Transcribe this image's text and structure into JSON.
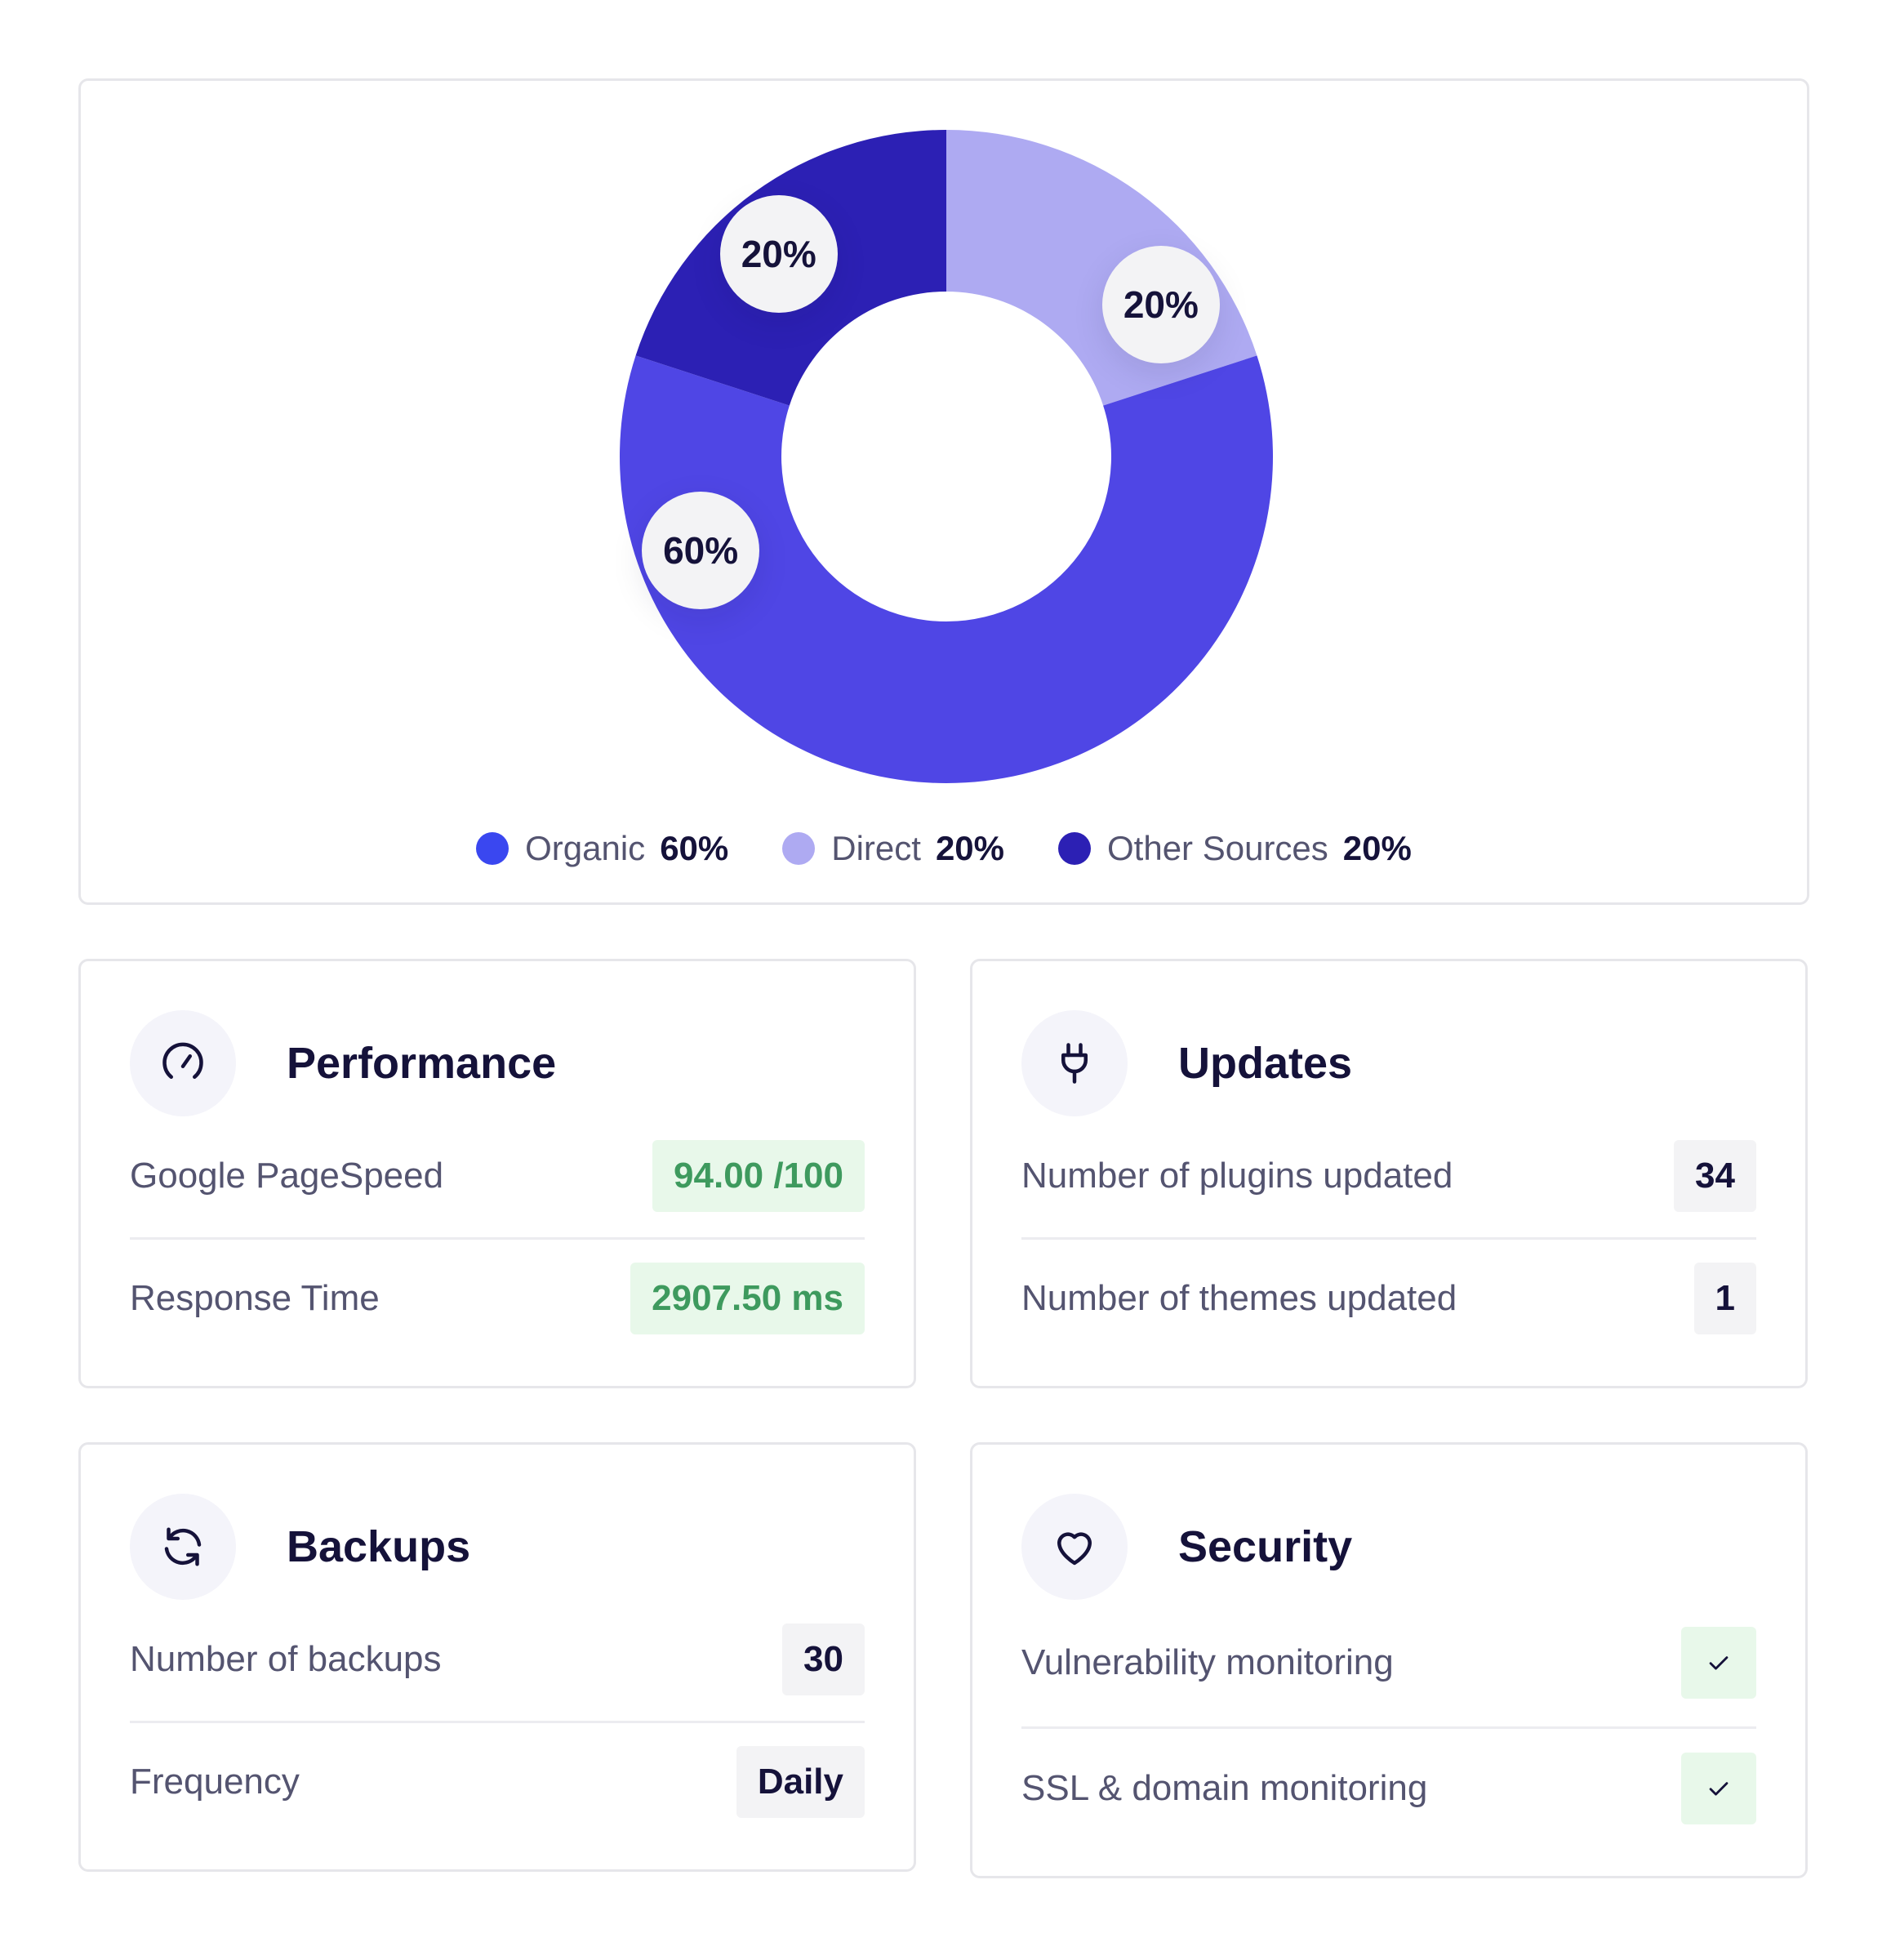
{
  "traffic": {
    "chart_data": {
      "type": "pie",
      "variant": "donut",
      "categories": [
        "Organic",
        "Direct",
        "Other Sources"
      ],
      "values": [
        60,
        20,
        20
      ],
      "unit": "%",
      "colors": [
        "#3a47f0",
        "#aeaaf2",
        "#2c20b4"
      ],
      "slice_colors": [
        "#4f46e5",
        "#aeaaf2",
        "#2c20b4"
      ],
      "data_labels": [
        "60%",
        "20%",
        "20%"
      ],
      "legend_position": "bottom"
    },
    "legend": [
      {
        "label": "Organic",
        "value": "60%"
      },
      {
        "label": "Direct",
        "value": "20%"
      },
      {
        "label": "Other Sources",
        "value": "20%"
      }
    ]
  },
  "performance": {
    "title": "Performance",
    "icon": "speedometer-icon",
    "rows": [
      {
        "label": "Google PageSpeed",
        "value": "94.00 /100"
      },
      {
        "label": "Response Time",
        "value": "2907.50 ms"
      }
    ]
  },
  "updates": {
    "title": "Updates",
    "icon": "plug-icon",
    "rows": [
      {
        "label": "Number of plugins updated",
        "value": "34"
      },
      {
        "label": "Number of themes updated",
        "value": "1"
      }
    ]
  },
  "backups": {
    "title": "Backups",
    "icon": "refresh-icon",
    "rows": [
      {
        "label": "Number of backups",
        "value": "30"
      },
      {
        "label": "Frequency",
        "value": "Daily"
      }
    ]
  },
  "security": {
    "title": "Security",
    "icon": "heart-icon",
    "rows": [
      {
        "label": "Vulnerability monitoring",
        "status": "check-icon"
      },
      {
        "label": "SSL & domain monitoring",
        "status": "check-icon"
      }
    ]
  }
}
